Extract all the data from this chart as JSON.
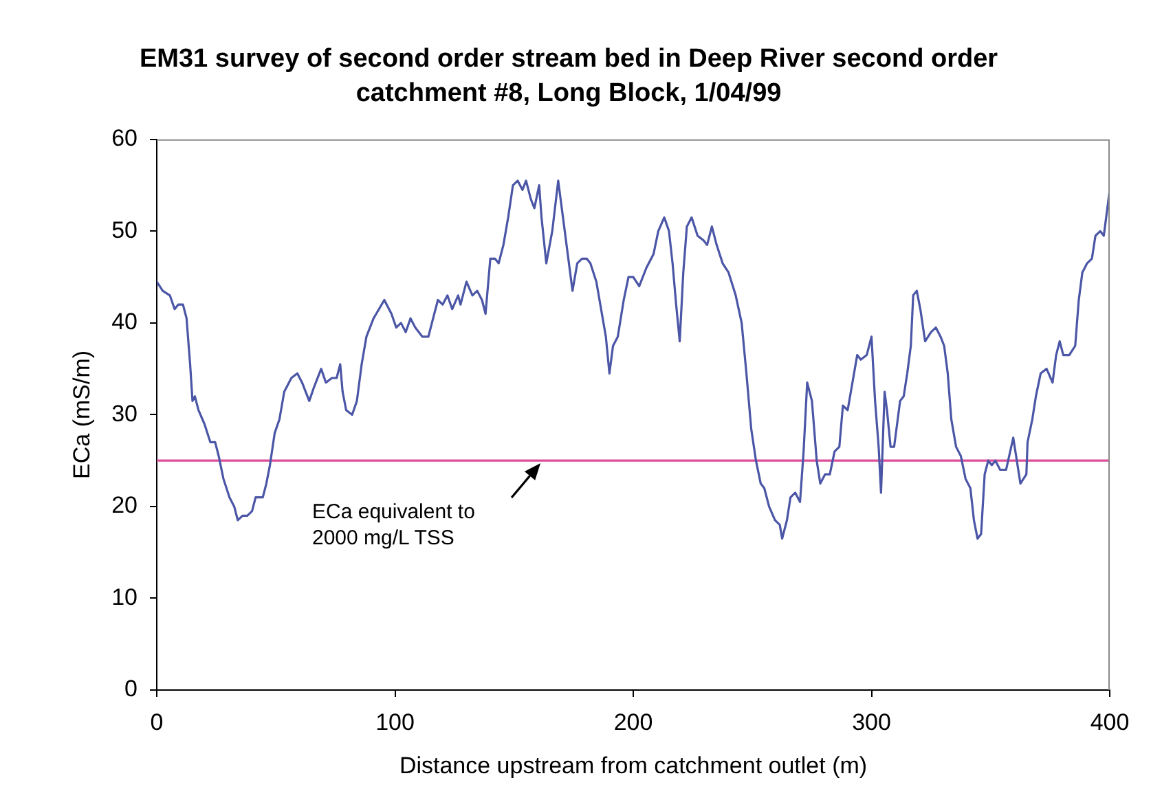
{
  "chart_data": {
    "type": "line",
    "title": "EM31 survey of second order stream bed in Deep River second order catchment #8, Long Block, 1/04/99",
    "xlabel": "Distance upstream from catchment outlet (m)",
    "ylabel": "ECa (mS/m)",
    "xlim": [
      0,
      400
    ],
    "xticks": [
      0,
      100,
      200,
      300,
      400
    ],
    "ylim": [
      0,
      60
    ],
    "yticks": [
      0,
      10,
      20,
      30,
      40,
      50,
      60
    ],
    "x": [
      0,
      2.5,
      5.5,
      7.5,
      9,
      11,
      12.5,
      14,
      15,
      16,
      17.5,
      20,
      22.5,
      24.5,
      26,
      28,
      30.5,
      32.5,
      34,
      36,
      38,
      40,
      41.5,
      44.5,
      46,
      47.5,
      49.5,
      51.5,
      53.5,
      56.5,
      59,
      61,
      64,
      66,
      69,
      71,
      73.5,
      75.5,
      77,
      78,
      79.5,
      82,
      84,
      86,
      88,
      91,
      95.5,
      98.5,
      100.5,
      102.5,
      104.5,
      106.5,
      108.5,
      111.5,
      114,
      116,
      118,
      120,
      122,
      124,
      126.5,
      127.5,
      130,
      132.5,
      134.5,
      136.5,
      138,
      140,
      142,
      143.5,
      145.5,
      147.5,
      149.5,
      151.5,
      153.5,
      155,
      157,
      158.5,
      160.5,
      161.5,
      163.5,
      166,
      168.5,
      170.5,
      172.5,
      174.5,
      176.5,
      178.5,
      180.5,
      182,
      184.5,
      186.5,
      188.5,
      190,
      191.5,
      193.5,
      196,
      198,
      200,
      202.5,
      205.5,
      208.5,
      210.5,
      213,
      215,
      216.5,
      218,
      219.5,
      221,
      222.5,
      224.5,
      227,
      229.5,
      231,
      233,
      235,
      237.5,
      240,
      243,
      245.5,
      247.5,
      249.5,
      251.5,
      253.5,
      255,
      257,
      259.5,
      261.5,
      262.5,
      264.5,
      266,
      268,
      270,
      271.5,
      273,
      275,
      277,
      278.5,
      280.5,
      282.5,
      284.5,
      286.5,
      288,
      290,
      292,
      294,
      295.5,
      298,
      300,
      301.5,
      303,
      304,
      305.5,
      306.5,
      308,
      309.5,
      312,
      313.5,
      315,
      316.5,
      317.5,
      319,
      320.5,
      322.5,
      325,
      327,
      329,
      330.5,
      332,
      333.5,
      335.5,
      337.5,
      339.5,
      341.5,
      343,
      344.5,
      346,
      347.5,
      349,
      350.5,
      352,
      354,
      356.5,
      359.5,
      361,
      362.5,
      365,
      365.5,
      367.5,
      369,
      371,
      373.5,
      376,
      377.5,
      379,
      380.5,
      383,
      385.5,
      387,
      388.5,
      390.5,
      392.5,
      394,
      396,
      397.5,
      399,
      400
    ],
    "series": [
      {
        "color": "#4b56a6",
        "values": [
          44.5,
          43.5,
          43,
          41.5,
          42,
          42,
          40.5,
          35.5,
          31.5,
          32,
          30.5,
          29,
          27,
          27,
          25.5,
          23,
          21,
          20,
          18.5,
          19,
          19,
          19.5,
          21,
          21,
          22.5,
          24.5,
          28,
          29.5,
          32.5,
          34,
          34.5,
          33.5,
          31.5,
          33,
          35,
          33.5,
          34,
          34,
          35.5,
          32.5,
          30.5,
          30,
          31.5,
          35.5,
          38.5,
          40.5,
          42.5,
          41,
          39.5,
          40,
          39,
          40.5,
          39.5,
          38.5,
          38.5,
          40.5,
          42.5,
          42,
          43,
          41.5,
          43,
          42,
          44.5,
          43,
          43.5,
          42.5,
          41,
          47,
          47,
          46.5,
          48.5,
          51.5,
          55,
          55.5,
          54.5,
          55.5,
          53.5,
          52.5,
          55,
          51.5,
          46.5,
          50,
          55.5,
          51.5,
          47.5,
          43.5,
          46.5,
          47,
          47,
          46.5,
          44.5,
          41.5,
          38.5,
          34.5,
          37.5,
          38.5,
          42.5,
          45,
          45,
          44,
          46,
          47.5,
          50,
          51.5,
          50,
          46.5,
          42,
          38,
          45.5,
          50.5,
          51.5,
          49.5,
          49,
          48.5,
          50.5,
          48.5,
          46.5,
          45.5,
          43,
          40,
          34.5,
          28.5,
          25,
          22.5,
          22,
          20,
          18.5,
          18,
          16.5,
          18.5,
          21,
          21.5,
          20.5,
          26,
          33.5,
          31.5,
          25,
          22.5,
          23.5,
          23.5,
          26,
          26.5,
          31,
          30.5,
          33.5,
          36.5,
          36,
          36.5,
          38.5,
          31.5,
          26.5,
          21.5,
          32.5,
          30.5,
          26.5,
          26.5,
          31.5,
          32,
          34.5,
          37.5,
          43,
          43.5,
          41.5,
          38,
          39,
          39.5,
          38.5,
          37.5,
          34.5,
          29.5,
          26.5,
          25.5,
          23,
          22,
          18.5,
          16.5,
          17,
          23.5,
          25,
          24.5,
          25,
          24,
          24,
          27.5,
          25,
          22.5,
          23.5,
          27,
          29.5,
          32,
          34.5,
          35,
          33.5,
          36.5,
          38,
          36.5,
          36.5,
          37.5,
          42.5,
          45.5,
          46.5,
          47,
          49.5,
          50,
          49.5,
          52.5,
          54.5
        ]
      }
    ],
    "ref_lines": [
      {
        "axis": "y",
        "value": 25,
        "color": "#dc4f9b"
      }
    ],
    "annotations": [
      "ECa equivalent to\n2000 mg/L TSS"
    ]
  }
}
